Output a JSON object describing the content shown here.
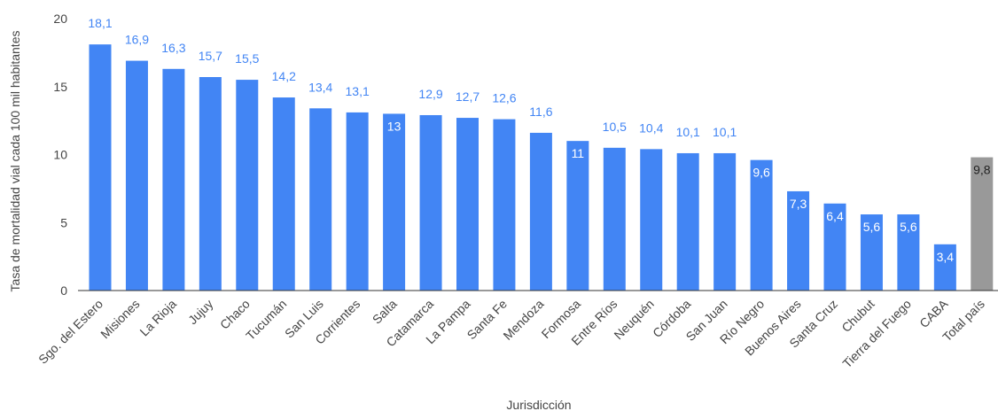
{
  "chart_data": {
    "type": "bar",
    "xlabel": "Jurisdicción",
    "ylabel": "Tasa de mortalidad vial cada 100 mil habitantes",
    "ylim": [
      0,
      20
    ],
    "yticks": [
      0,
      5,
      10,
      15,
      20
    ],
    "grid": false,
    "legend": "none",
    "categories": [
      "Sgo. del Estero",
      "Misiones",
      "La Rioja",
      "Jujuy",
      "Chaco",
      "Tucumán",
      "San Luis",
      "Corrientes",
      "Salta",
      "Catamarca",
      "La Pampa",
      "Santa Fe",
      "Mendoza",
      "Formosa",
      "Entre Ríos",
      "Neuquén",
      "Córdoba",
      "San Juan",
      "Río Negro",
      "Buenos Aires",
      "Santa Cruz",
      "Chubut",
      "Tierra del Fuego",
      "CABA",
      "Total país"
    ],
    "values": [
      18.1,
      16.9,
      16.3,
      15.7,
      15.5,
      14.2,
      13.4,
      13.1,
      13,
      12.9,
      12.7,
      12.6,
      11.6,
      11,
      10.5,
      10.4,
      10.1,
      10.1,
      9.6,
      7.3,
      6.4,
      5.6,
      5.6,
      3.4,
      9.8
    ],
    "value_labels": [
      "18,1",
      "16,9",
      "16,3",
      "15,7",
      "15,5",
      "14,2",
      "13,4",
      "13,1",
      "13",
      "12,9",
      "12,7",
      "12,6",
      "11,6",
      "11",
      "10,5",
      "10,4",
      "10,1",
      "10,1",
      "9,6",
      "7,3",
      "6,4",
      "5,6",
      "5,6",
      "3,4",
      "9,8"
    ],
    "label_inside": [
      false,
      false,
      false,
      false,
      false,
      false,
      false,
      false,
      true,
      false,
      false,
      false,
      false,
      true,
      false,
      false,
      false,
      false,
      true,
      true,
      true,
      true,
      true,
      true,
      true
    ],
    "colors": {
      "bar": "#4285f4",
      "highlight_bar": "#999999",
      "label_outside": "#4285f4",
      "label_inside": "#ffffff",
      "label_highlight": "#222222",
      "axis_text": "#444444"
    },
    "highlight_index": 24
  }
}
